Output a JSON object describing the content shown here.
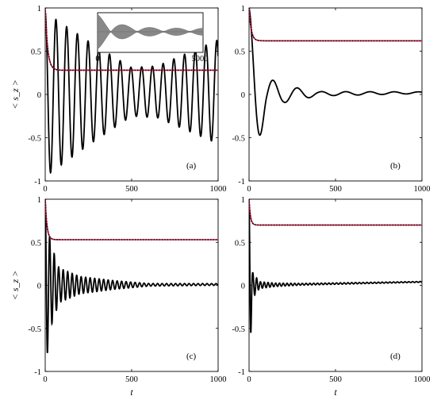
{
  "figure": {
    "ylabel": "< s_z >",
    "xlabel": "t",
    "panels": [
      {
        "label": "(a)",
        "ylabel_shown": true,
        "xlabel_shown": false
      },
      {
        "label": "(b)",
        "ylabel_shown": false,
        "xlabel_shown": false
      },
      {
        "label": "(c)",
        "ylabel_shown": true,
        "xlabel_shown": true
      },
      {
        "label": "(d)",
        "ylabel_shown": false,
        "xlabel_shown": true
      }
    ],
    "inset": {
      "xticks": [
        "0",
        "5000"
      ]
    }
  },
  "colors": {
    "oscillating": "#000000",
    "relaxing": "#c0143c",
    "inset_fill": "#888888"
  },
  "chart_data": [
    {
      "panel": "(a)",
      "type": "line",
      "xlim": [
        0,
        1000
      ],
      "ylim": [
        -1,
        1
      ],
      "xticks": [
        0,
        500,
        1000
      ],
      "yticks": [
        -1,
        -0.5,
        0,
        0.5,
        1
      ],
      "series": [
        {
          "style": "solid-black",
          "kind": "oscillation",
          "osc": {
            "period": 62,
            "amp_env": [
              [
                0,
                0.95
              ],
              [
                250,
                0.6
              ],
              [
                500,
                0.28
              ],
              [
                650,
                0.3
              ],
              [
                1000,
                0.6
              ]
            ],
            "center": [
              [
                0,
                0.0
              ],
              [
                500,
                0.03
              ],
              [
                1000,
                0.03
              ]
            ]
          }
        },
        {
          "style": "red-dotted",
          "kind": "relaxation",
          "relax": {
            "start": 1.0,
            "plateau": 0.28,
            "tau": 14
          }
        }
      ],
      "inset": {
        "xlim": [
          0,
          5000
        ],
        "kind": "beating",
        "beat_nodes": [
          600,
          1250,
          1900,
          2500,
          3100,
          3700,
          4300
        ]
      }
    },
    {
      "panel": "(b)",
      "type": "line",
      "xlim": [
        0,
        1000
      ],
      "ylim": [
        -1,
        1
      ],
      "xticks": [
        0,
        500,
        1000
      ],
      "yticks": [
        -1,
        -0.5,
        0,
        0.5,
        1
      ],
      "series": [
        {
          "style": "solid-black",
          "kind": "oscillation",
          "osc": {
            "period": 140,
            "amp_env": [
              [
                0,
                1.0
              ],
              [
                100,
                0.2
              ],
              [
                200,
                0.1
              ],
              [
                400,
                0.025
              ],
              [
                1000,
                0.01
              ]
            ],
            "center": [
              [
                0,
                0.0
              ],
              [
                1000,
                0.02
              ]
            ],
            "phase_deg": 0
          }
        },
        {
          "style": "red-dotted",
          "kind": "relaxation",
          "relax": {
            "start": 1.0,
            "plateau": 0.62,
            "tau": 12
          }
        }
      ]
    },
    {
      "panel": "(c)",
      "type": "line",
      "xlim": [
        0,
        1000
      ],
      "ylim": [
        -1,
        1
      ],
      "xticks": [
        0,
        500,
        1000
      ],
      "yticks": [
        -1,
        -0.5,
        0,
        0.5,
        1
      ],
      "series": [
        {
          "style": "solid-black",
          "kind": "oscillation",
          "osc": {
            "period": 26,
            "amp_env": [
              [
                0,
                1.0
              ],
              [
                30,
                0.5
              ],
              [
                80,
                0.2
              ],
              [
                200,
                0.1
              ],
              [
                400,
                0.05
              ],
              [
                600,
                0.015
              ],
              [
                1000,
                0.01
              ]
            ],
            "center": [
              [
                0,
                0.0
              ],
              [
                1000,
                0.01
              ]
            ]
          }
        },
        {
          "style": "red-dotted",
          "kind": "relaxation",
          "relax": {
            "start": 1.0,
            "plateau": 0.53,
            "tau": 10
          }
        }
      ]
    },
    {
      "panel": "(d)",
      "type": "line",
      "xlim": [
        0,
        1000
      ],
      "ylim": [
        -1,
        1
      ],
      "xticks": [
        0,
        500,
        1000
      ],
      "yticks": [
        -1,
        -0.5,
        0,
        0.5,
        1
      ],
      "series": [
        {
          "style": "solid-black",
          "kind": "oscillation",
          "osc": {
            "period": 22,
            "amp_env": [
              [
                0,
                1.0
              ],
              [
                20,
                0.15
              ],
              [
                60,
                0.04
              ],
              [
                150,
                0.02
              ],
              [
                300,
                0.01
              ],
              [
                1000,
                0.005
              ]
            ],
            "center": [
              [
                0,
                0.0
              ],
              [
                1000,
                0.04
              ]
            ]
          }
        },
        {
          "style": "red-dotted",
          "kind": "relaxation",
          "relax": {
            "start": 1.0,
            "plateau": 0.7,
            "tau": 8
          }
        }
      ]
    }
  ]
}
